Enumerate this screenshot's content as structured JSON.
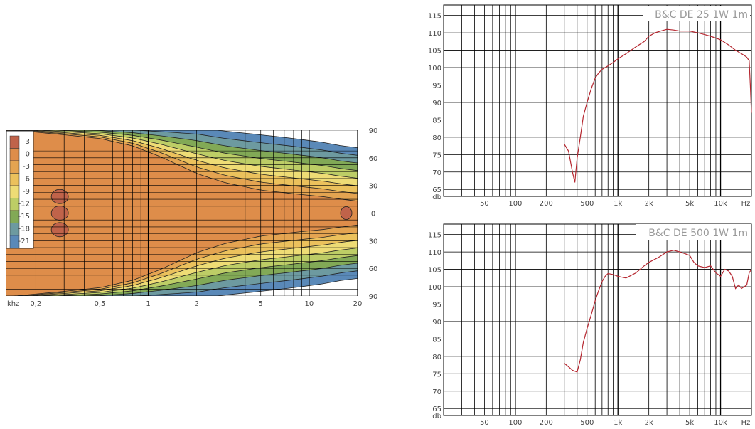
{
  "chart_data": [
    {
      "type": "heatmap",
      "xlabel": "khz",
      "x_ticks": [
        "0,2",
        "0,5",
        "1",
        "2",
        "5",
        "10",
        "20"
      ],
      "x_tick_values": [
        0.2,
        0.5,
        1,
        2,
        5,
        10,
        20
      ],
      "xlim": [
        0.13,
        20
      ],
      "x_scale": "log",
      "y_ticks": [
        "90",
        "60",
        "30",
        "0",
        "30",
        "60",
        "90"
      ],
      "y_tick_values": [
        90,
        60,
        30,
        0,
        -30,
        -60,
        -90
      ],
      "ylim": [
        -90,
        90
      ],
      "legend": {
        "placement": "left",
        "levels": [
          {
            "label": "3",
            "color": "#c0634a"
          },
          {
            "label": "0",
            "color": "#de8d4a"
          },
          {
            "label": "-3",
            "color": "#e4a451"
          },
          {
            "label": "-6",
            "color": "#ebc15c"
          },
          {
            "label": "-9",
            "color": "#eedc75"
          },
          {
            "label": "-12",
            "color": "#bdcd66"
          },
          {
            "label": "-15",
            "color": "#82a956"
          },
          {
            "label": "-18",
            "color": "#6d9aa0"
          },
          {
            "label": "-21",
            "color": "#5a89b8"
          }
        ]
      },
      "coverage_half_angle": {
        "x": [
          0.13,
          0.3,
          0.5,
          0.8,
          1.2,
          2,
          3,
          5,
          8,
          12,
          16,
          20
        ],
        "minus3db": [
          88,
          82,
          78,
          70,
          58,
          40,
          30,
          22,
          18,
          15,
          12,
          10
        ],
        "minus21db": [
          90,
          90,
          90,
          90,
          90,
          90,
          86,
          82,
          78,
          74,
          70,
          68
        ]
      }
    },
    {
      "type": "line",
      "title": "B&C DE 25 1W 1m",
      "xlabel": "Hz",
      "ylabel": "db",
      "x_scale": "log",
      "xlim": [
        20,
        20000
      ],
      "ylim": [
        65,
        118
      ],
      "x_ticks": [
        "50",
        "100",
        "200",
        "500",
        "1k",
        "2k",
        "5k",
        "10k",
        "Hz"
      ],
      "x_tick_values": [
        50,
        100,
        200,
        500,
        1000,
        2000,
        5000,
        10000,
        20000
      ],
      "y_ticks": [
        "115",
        "110",
        "105",
        "100",
        "95",
        "90",
        "85",
        "80",
        "75",
        "70",
        "65",
        "db"
      ],
      "y_tick_values": [
        115,
        110,
        105,
        100,
        95,
        90,
        85,
        80,
        75,
        70,
        65,
        63
      ],
      "grid": true,
      "line_color": "#b5262f",
      "series": [
        {
          "x": [
            300,
            330,
            360,
            380,
            400,
            430,
            460,
            500,
            550,
            600,
            650,
            700,
            800,
            900,
            1000,
            1200,
            1500,
            1800,
            2000,
            2300,
            2600,
            3000,
            3500,
            4000,
            4500,
            5000,
            6000,
            7000,
            8000,
            9000,
            10000,
            12000,
            14000,
            16000,
            17000,
            18000,
            19000,
            19500,
            20000
          ],
          "y": [
            78,
            76,
            70,
            67,
            74,
            80,
            86,
            90,
            94,
            97,
            98.5,
            99.5,
            100.5,
            101.5,
            102.5,
            104,
            106,
            107.5,
            109,
            110,
            110.5,
            111,
            110.8,
            110.5,
            110.5,
            110.5,
            110,
            109.5,
            109,
            108.5,
            108,
            106.5,
            105,
            104,
            103.5,
            103,
            102,
            95,
            87
          ]
        }
      ]
    },
    {
      "type": "line",
      "title": "B&C DE 500 1W 1m",
      "xlabel": "Hz",
      "ylabel": "db",
      "x_scale": "log",
      "xlim": [
        20,
        20000
      ],
      "ylim": [
        65,
        118
      ],
      "x_ticks": [
        "50",
        "100",
        "200",
        "500",
        "1k",
        "2k",
        "5k",
        "10k",
        "Hz"
      ],
      "x_tick_values": [
        50,
        100,
        200,
        500,
        1000,
        2000,
        5000,
        10000,
        20000
      ],
      "y_ticks": [
        "115",
        "110",
        "105",
        "100",
        "95",
        "90",
        "85",
        "80",
        "75",
        "70",
        "65",
        "db"
      ],
      "y_tick_values": [
        115,
        110,
        105,
        100,
        95,
        90,
        85,
        80,
        75,
        70,
        65,
        63
      ],
      "grid": true,
      "line_color": "#b5262f",
      "series": [
        {
          "x": [
            300,
            330,
            360,
            400,
            430,
            460,
            500,
            550,
            600,
            650,
            700,
            750,
            800,
            900,
            1000,
            1200,
            1500,
            1800,
            2000,
            2500,
            3000,
            3500,
            4000,
            4500,
            5000,
            5500,
            6000,
            7000,
            8000,
            9000,
            10000,
            11000,
            12000,
            13000,
            14000,
            15000,
            16000,
            17000,
            18000,
            19000,
            20000
          ],
          "y": [
            78,
            77,
            76,
            75.5,
            79,
            84,
            88,
            92,
            96,
            99,
            101.5,
            103,
            103.8,
            103.5,
            103,
            102.5,
            104,
            106,
            107,
            108.5,
            110,
            110.5,
            110,
            109.5,
            109,
            107,
            106,
            105.5,
            106,
            104,
            103,
            105,
            104.5,
            103,
            99.5,
            100.5,
            99.5,
            100,
            100.5,
            104,
            105
          ]
        }
      ]
    }
  ]
}
